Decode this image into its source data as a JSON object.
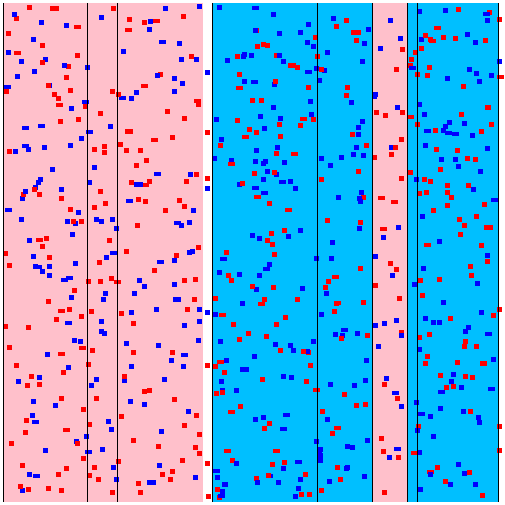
{
  "colors": {
    "background": "#ffffff",
    "pink_region": "#ffc0cb",
    "cyan_region": "#00bfff",
    "red_dot": "#ff0000",
    "blue_dot": "#0000ff",
    "divider": "#000000"
  },
  "stripes": [
    {
      "region": "pink",
      "fill_key": "pink_region"
    },
    {
      "region": "cyan",
      "fill_key": "cyan_region"
    },
    {
      "region": "pink",
      "fill_key": "pink_region"
    },
    {
      "region": "cyan",
      "fill_key": "cyan_region"
    }
  ],
  "dot_kinds": [
    "red",
    "blue"
  ]
}
